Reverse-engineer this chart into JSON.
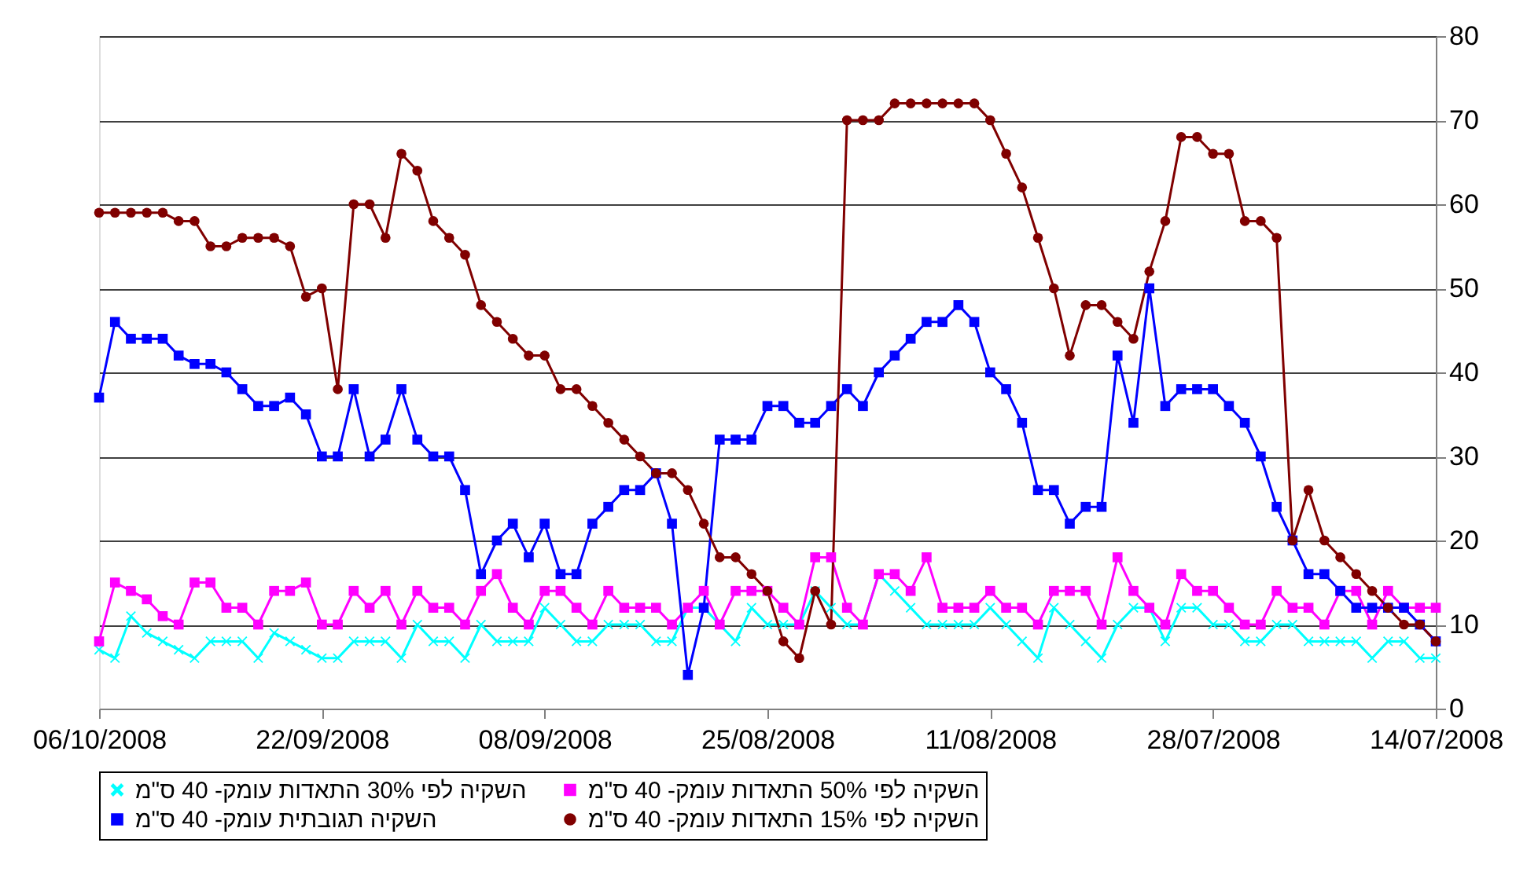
{
  "chart_data": {
    "type": "line",
    "x": [
      "2008-10-06",
      "2008-10-05",
      "2008-10-04",
      "2008-10-03",
      "2008-10-02",
      "2008-10-01",
      "2008-09-30",
      "2008-09-29",
      "2008-09-28",
      "2008-09-27",
      "2008-09-26",
      "2008-09-25",
      "2008-09-24",
      "2008-09-23",
      "2008-09-22",
      "2008-09-21",
      "2008-09-20",
      "2008-09-19",
      "2008-09-18",
      "2008-09-17",
      "2008-09-16",
      "2008-09-15",
      "2008-09-14",
      "2008-09-13",
      "2008-09-12",
      "2008-09-11",
      "2008-09-10",
      "2008-09-09",
      "2008-09-08",
      "2008-09-07",
      "2008-09-06",
      "2008-09-05",
      "2008-09-04",
      "2008-09-03",
      "2008-09-02",
      "2008-09-01",
      "2008-08-31",
      "2008-08-30",
      "2008-08-29",
      "2008-08-28",
      "2008-08-27",
      "2008-08-26",
      "2008-08-25",
      "2008-08-24",
      "2008-08-23",
      "2008-08-22",
      "2008-08-21",
      "2008-08-20",
      "2008-08-19",
      "2008-08-18",
      "2008-08-17",
      "2008-08-16",
      "2008-08-15",
      "2008-08-14",
      "2008-08-13",
      "2008-08-12",
      "2008-08-11",
      "2008-08-10",
      "2008-08-09",
      "2008-08-08",
      "2008-08-07",
      "2008-08-06",
      "2008-08-05",
      "2008-08-04",
      "2008-08-03",
      "2008-08-02",
      "2008-08-01",
      "2008-07-31",
      "2008-07-30",
      "2008-07-29",
      "2008-07-28",
      "2008-07-27",
      "2008-07-26",
      "2008-07-25",
      "2008-07-24",
      "2008-07-23",
      "2008-07-22",
      "2008-07-21",
      "2008-07-20",
      "2008-07-19",
      "2008-07-18",
      "2008-07-17",
      "2008-07-16",
      "2008-07-15",
      "2008-07-14"
    ],
    "xlim": [
      "2008-10-06",
      "2008-07-14"
    ],
    "xticks": [
      {
        "value": "2008-10-06",
        "label": "06/10/2008"
      },
      {
        "value": "2008-09-22",
        "label": "22/09/2008"
      },
      {
        "value": "2008-09-08",
        "label": "08/09/2008"
      },
      {
        "value": "2008-08-25",
        "label": "25/08/2008"
      },
      {
        "value": "2008-08-11",
        "label": "11/08/2008"
      },
      {
        "value": "2008-07-28",
        "label": "28/07/2008"
      },
      {
        "value": "2008-07-14",
        "label": "14/07/2008"
      }
    ],
    "ylim": [
      0,
      80
    ],
    "yticks": [
      0,
      10,
      20,
      30,
      40,
      50,
      60,
      70,
      80
    ],
    "grid": "y",
    "legend": "bottom",
    "line_style": "solid",
    "series": [
      {
        "name": "השקיה לפי 30% התאדות עומק- 40 ס\"מ",
        "color": "#00ffff",
        "marker": "cross",
        "values": [
          7,
          6,
          11,
          9,
          8,
          7,
          6,
          8,
          8,
          8,
          6,
          9,
          8,
          7,
          6,
          6,
          8,
          8,
          8,
          6,
          10,
          8,
          8,
          6,
          10,
          8,
          8,
          8,
          12,
          10,
          8,
          8,
          10,
          10,
          10,
          8,
          8,
          12,
          12,
          10,
          8,
          12,
          10,
          10,
          10,
          14,
          12,
          10,
          10,
          16,
          14,
          12,
          10,
          10,
          10,
          10,
          12,
          10,
          8,
          6,
          12,
          10,
          8,
          6,
          10,
          12,
          12,
          8,
          12,
          12,
          10,
          10,
          8,
          8,
          10,
          10,
          8,
          8,
          8,
          8,
          6,
          8,
          8,
          6,
          6
        ]
      },
      {
        "name": "השקיה לפי 50% התאדות עומק- 40 ס\"מ",
        "color": "#ff00ff",
        "marker": "square",
        "values": [
          8,
          15,
          14,
          13,
          11,
          10,
          15,
          15,
          12,
          12,
          10,
          14,
          14,
          15,
          10,
          10,
          14,
          12,
          14,
          10,
          14,
          12,
          12,
          10,
          14,
          16,
          12,
          10,
          14,
          14,
          12,
          10,
          14,
          12,
          12,
          12,
          10,
          12,
          14,
          10,
          14,
          14,
          14,
          12,
          10,
          18,
          18,
          12,
          10,
          16,
          16,
          14,
          18,
          12,
          12,
          12,
          14,
          12,
          12,
          10,
          14,
          14,
          14,
          10,
          18,
          14,
          12,
          10,
          16,
          14,
          14,
          12,
          10,
          10,
          14,
          12,
          12,
          10,
          14,
          14,
          10,
          14,
          12,
          12,
          12
        ]
      },
      {
        "name": "השקיה תגובתית עומק- 40 ס\"מ",
        "color": "#0000ff",
        "marker": "square",
        "values": [
          37,
          46,
          44,
          44,
          44,
          42,
          41,
          41,
          40,
          38,
          36,
          36,
          37,
          35,
          30,
          30,
          38,
          30,
          32,
          38,
          32,
          30,
          30,
          26,
          16,
          20,
          22,
          18,
          22,
          16,
          16,
          22,
          24,
          26,
          26,
          28,
          22,
          4,
          12,
          32,
          32,
          32,
          36,
          36,
          34,
          34,
          36,
          38,
          36,
          40,
          42,
          44,
          46,
          46,
          48,
          46,
          40,
          38,
          34,
          26,
          26,
          22,
          24,
          24,
          42,
          34,
          50,
          36,
          38,
          38,
          38,
          36,
          34,
          30,
          24,
          20,
          16,
          16,
          14,
          12,
          12,
          12,
          12,
          10,
          8
        ]
      },
      {
        "name": "השקיה לפי 15% התאדות עומק- 40 ס\"מ",
        "color": "#800000",
        "marker": "circle",
        "values": [
          59,
          59,
          59,
          59,
          59,
          58,
          58,
          55,
          55,
          56,
          56,
          56,
          55,
          49,
          50,
          38,
          60,
          60,
          56,
          66,
          64,
          58,
          56,
          54,
          48,
          46,
          44,
          42,
          42,
          38,
          38,
          36,
          34,
          32,
          30,
          28,
          28,
          26,
          22,
          18,
          18,
          16,
          14,
          8,
          6,
          14,
          10,
          70,
          70,
          70,
          72,
          72,
          72,
          72,
          72,
          72,
          70,
          66,
          62,
          56,
          50,
          42,
          48,
          48,
          46,
          44,
          52,
          58,
          68,
          68,
          66,
          66,
          58,
          58,
          56,
          20,
          26,
          20,
          18,
          16,
          14,
          12,
          10,
          10,
          8
        ]
      }
    ]
  }
}
